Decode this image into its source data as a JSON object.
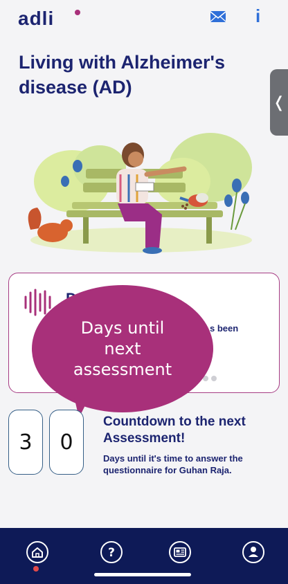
{
  "header": {
    "logo_text": "adli",
    "mail_icon": "mail-icon",
    "info_label": "i"
  },
  "title": "Living with Alzheimer's disease (AD)",
  "side_handle": {
    "icon": "chevron-left-icon",
    "glyph": "❬"
  },
  "card": {
    "title_fragment": "D",
    "text_fragment": "s been"
  },
  "bubble": {
    "text": "Days until next assessment"
  },
  "countdown": {
    "digits": [
      "3",
      "0"
    ],
    "title": "Countdown to the next Assessment!",
    "subtitle": "Days until it's time to answer the questionnaire for Guhan Raja."
  },
  "nav": {
    "items": [
      {
        "name": "home",
        "icon": "home-icon"
      },
      {
        "name": "help",
        "icon": "help-icon"
      },
      {
        "name": "news",
        "icon": "news-icon"
      },
      {
        "name": "profile",
        "icon": "profile-icon"
      }
    ]
  },
  "colors": {
    "brand_navy": "#1c2470",
    "magenta": "#a8307a",
    "nav_bg": "#0e1a57"
  }
}
